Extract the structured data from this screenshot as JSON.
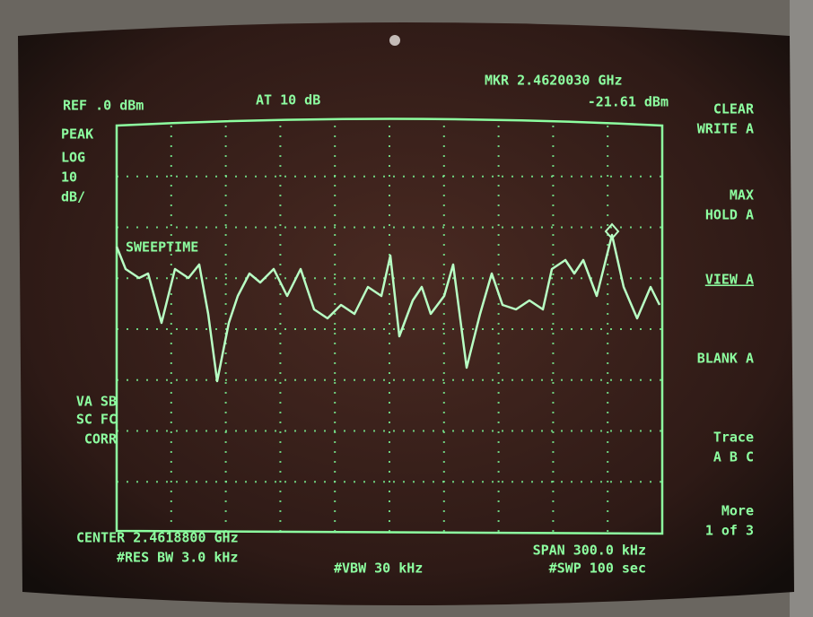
{
  "screen": {
    "header": {
      "ref": "REF .0 dBm",
      "atten": "AT 10 dB",
      "marker_freq": "MKR 2.4620030 GHz",
      "marker_level": "-21.61 dBm"
    },
    "left_labels": [
      "PEAK",
      "LOG",
      "10",
      "dB/"
    ],
    "overlay": "SWEEPTIME",
    "left_status": [
      "VA SB",
      "SC FC",
      "CORR"
    ],
    "footer": {
      "center": "CENTER 2.4618800 GHz",
      "rbw": "#RES BW 3.0 kHz",
      "vbw": "#VBW 30 kHz",
      "span": "SPAN 300.0 kHz",
      "sweep": "#SWP 100 sec"
    },
    "softkeys": [
      {
        "lines": [
          "CLEAR",
          "WRITE A"
        ]
      },
      {
        "lines": [
          "MAX",
          "HOLD A"
        ]
      },
      {
        "lines": [
          "VIEW A"
        ]
      },
      {
        "lines": [
          "BLANK A"
        ]
      },
      {
        "lines": [
          "Trace",
          "A B C"
        ]
      },
      {
        "lines": [
          "More",
          "1 of 3"
        ]
      }
    ]
  }
}
